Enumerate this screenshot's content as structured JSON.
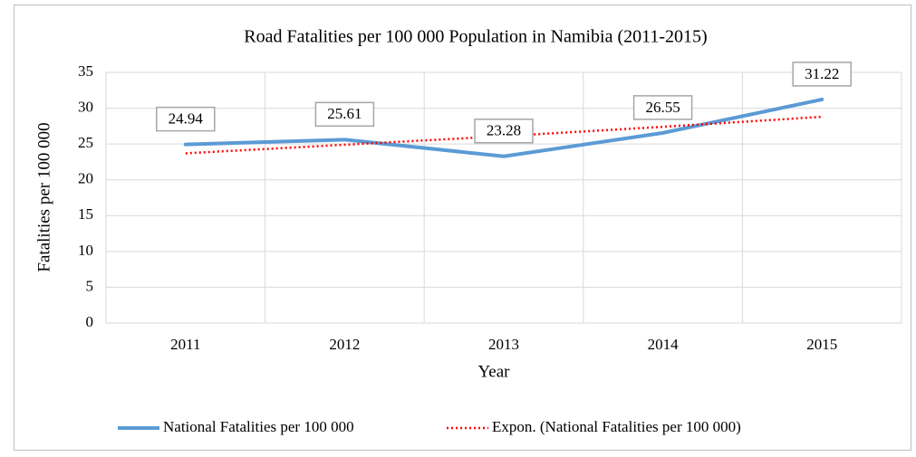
{
  "chart_data": {
    "type": "line",
    "title": "Road Fatalities per 100 000 Population in Namibia (2011-2015)",
    "x_label": "Year",
    "y_label": "Fatalities per 100 000",
    "categories": [
      "2011",
      "2012",
      "2013",
      "2014",
      "2015"
    ],
    "series": [
      {
        "name": "National Fatalities per 100 000",
        "color": "#5b9bd5",
        "style": "solid",
        "data_labels": true,
        "values": [
          24.94,
          25.61,
          23.28,
          26.55,
          31.22
        ]
      },
      {
        "name": "Expon. (National Fatalities per 100 000)",
        "color": "#ff0000",
        "style": "dotted",
        "data_labels": false,
        "values": [
          23.7,
          24.9,
          26.1,
          27.4,
          28.8
        ]
      }
    ],
    "ylim": [
      0,
      35
    ],
    "yticks": [
      0,
      5,
      10,
      15,
      20,
      25,
      30,
      35
    ],
    "grid": true,
    "legend": "bottom"
  }
}
